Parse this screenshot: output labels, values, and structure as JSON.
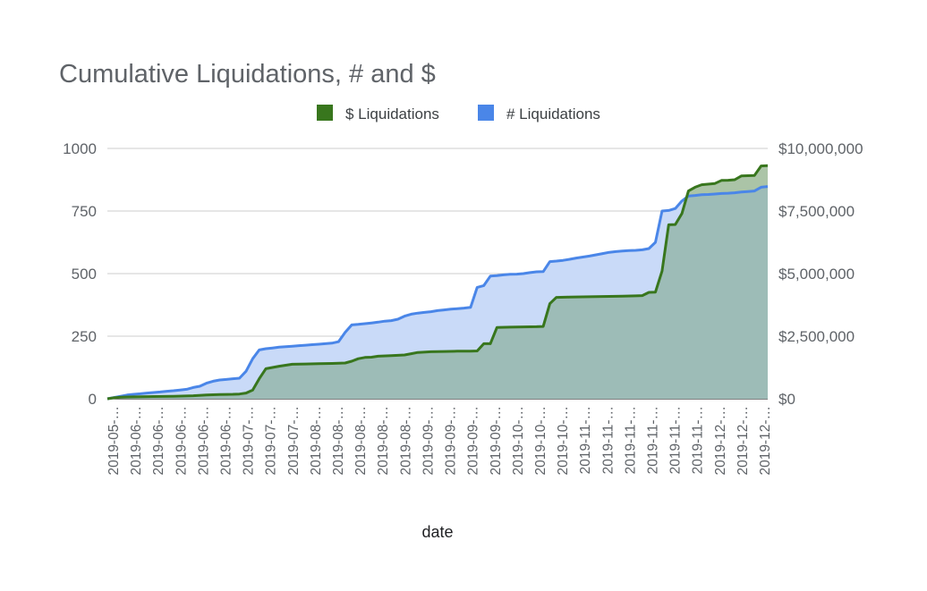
{
  "chart_data": {
    "type": "area",
    "title": "Cumulative Liquidations, # and $",
    "xlabel": "date",
    "ylabel_left": "",
    "ylabel_right": "",
    "legend_position": "top",
    "grid": true,
    "colors": {
      "dollar_line": "#38761d",
      "dollar_fill": "#8fb08a",
      "count_line": "#4a86e8",
      "count_fill": "#c9daf8",
      "overlap_fill": "#9dbcb7",
      "grid": "#cccccc",
      "axis_text": "#5f6368",
      "title": "#5f6368"
    },
    "y_left": {
      "lim": [
        0,
        1000
      ],
      "ticks": [
        0,
        250,
        500,
        750,
        1000
      ],
      "tick_labels": [
        "0",
        "250",
        "500",
        "750",
        "1000"
      ]
    },
    "y_right": {
      "lim": [
        0,
        10000000
      ],
      "ticks": [
        0,
        2500000,
        5000000,
        7500000,
        10000000
      ],
      "tick_labels": [
        "$0",
        "$2,500,000",
        "$5,000,000",
        "$7,500,000",
        "$10,000,000"
      ]
    },
    "x_tick_labels": [
      "2019-05-…",
      "2019-06-…",
      "2019-06-…",
      "2019-06-…",
      "2019-06-…",
      "2019-06-…",
      "2019-07-…",
      "2019-07-…",
      "2019-07-…",
      "2019-08-…",
      "2019-08-…",
      "2019-08-…",
      "2019-08-…",
      "2019-08-…",
      "2019-09-…",
      "2019-09-…",
      "2019-09-…",
      "2019-09-…",
      "2019-10-…",
      "2019-10-…",
      "2019-10-…",
      "2019-11-…",
      "2019-11-…",
      "2019-11-…",
      "2019-11-…",
      "2019-11-…",
      "2019-11-…",
      "2019-12-…",
      "2019-12-…",
      "2019-12-…"
    ],
    "series": [
      {
        "name": "$ Liquidations",
        "axis": "right",
        "points": [
          [
            0,
            0
          ],
          [
            2,
            40000
          ],
          [
            4,
            60000
          ],
          [
            6,
            70000
          ],
          [
            10,
            80000
          ],
          [
            14,
            90000
          ],
          [
            20,
            100000
          ],
          [
            26,
            120000
          ],
          [
            30,
            150000
          ],
          [
            34,
            170000
          ],
          [
            38,
            180000
          ],
          [
            40,
            190000
          ],
          [
            42,
            230000
          ],
          [
            44,
            350000
          ],
          [
            46,
            800000
          ],
          [
            48,
            1200000
          ],
          [
            52,
            1300000
          ],
          [
            56,
            1380000
          ],
          [
            60,
            1390000
          ],
          [
            64,
            1400000
          ],
          [
            68,
            1410000
          ],
          [
            70,
            1420000
          ],
          [
            72,
            1430000
          ],
          [
            74,
            1500000
          ],
          [
            76,
            1600000
          ],
          [
            78,
            1650000
          ],
          [
            80,
            1660000
          ],
          [
            82,
            1700000
          ],
          [
            86,
            1720000
          ],
          [
            90,
            1750000
          ],
          [
            92,
            1800000
          ],
          [
            94,
            1850000
          ],
          [
            98,
            1880000
          ],
          [
            102,
            1890000
          ],
          [
            106,
            1900000
          ],
          [
            110,
            1905000
          ],
          [
            112,
            1910000
          ],
          [
            114,
            2200000
          ],
          [
            116,
            2200000
          ],
          [
            118,
            2850000
          ],
          [
            122,
            2860000
          ],
          [
            126,
            2870000
          ],
          [
            130,
            2880000
          ],
          [
            132,
            2890000
          ],
          [
            134,
            3800000
          ],
          [
            136,
            4050000
          ],
          [
            140,
            4060000
          ],
          [
            144,
            4070000
          ],
          [
            148,
            4080000
          ],
          [
            152,
            4090000
          ],
          [
            156,
            4100000
          ],
          [
            160,
            4110000
          ],
          [
            162,
            4120000
          ],
          [
            164,
            4250000
          ],
          [
            166,
            4260000
          ],
          [
            168,
            5100000
          ],
          [
            170,
            6950000
          ],
          [
            172,
            6960000
          ],
          [
            174,
            7400000
          ],
          [
            176,
            8300000
          ],
          [
            178,
            8450000
          ],
          [
            180,
            8550000
          ],
          [
            184,
            8600000
          ],
          [
            186,
            8720000
          ],
          [
            188,
            8730000
          ],
          [
            190,
            8750000
          ],
          [
            192,
            8900000
          ],
          [
            196,
            8920000
          ],
          [
            198,
            9300000
          ],
          [
            200,
            9310000
          ]
        ]
      },
      {
        "name": "# Liquidations",
        "axis": "left",
        "points": [
          [
            0,
            0
          ],
          [
            2,
            5
          ],
          [
            4,
            10
          ],
          [
            6,
            15
          ],
          [
            8,
            18
          ],
          [
            10,
            20
          ],
          [
            12,
            23
          ],
          [
            14,
            25
          ],
          [
            16,
            27
          ],
          [
            18,
            30
          ],
          [
            20,
            32
          ],
          [
            22,
            35
          ],
          [
            24,
            38
          ],
          [
            26,
            45
          ],
          [
            28,
            50
          ],
          [
            30,
            62
          ],
          [
            32,
            70
          ],
          [
            34,
            75
          ],
          [
            36,
            77
          ],
          [
            38,
            80
          ],
          [
            40,
            82
          ],
          [
            42,
            110
          ],
          [
            44,
            160
          ],
          [
            46,
            195
          ],
          [
            48,
            200
          ],
          [
            50,
            203
          ],
          [
            52,
            206
          ],
          [
            54,
            208
          ],
          [
            56,
            210
          ],
          [
            58,
            212
          ],
          [
            60,
            214
          ],
          [
            62,
            216
          ],
          [
            64,
            218
          ],
          [
            66,
            220
          ],
          [
            68,
            222
          ],
          [
            70,
            228
          ],
          [
            72,
            265
          ],
          [
            74,
            295
          ],
          [
            76,
            297
          ],
          [
            78,
            300
          ],
          [
            80,
            303
          ],
          [
            82,
            306
          ],
          [
            84,
            310
          ],
          [
            86,
            312
          ],
          [
            88,
            318
          ],
          [
            90,
            330
          ],
          [
            92,
            338
          ],
          [
            94,
            342
          ],
          [
            96,
            345
          ],
          [
            98,
            348
          ],
          [
            100,
            352
          ],
          [
            102,
            355
          ],
          [
            104,
            358
          ],
          [
            106,
            360
          ],
          [
            108,
            362
          ],
          [
            110,
            365
          ],
          [
            112,
            445
          ],
          [
            114,
            452
          ],
          [
            116,
            490
          ],
          [
            118,
            492
          ],
          [
            120,
            495
          ],
          [
            122,
            497
          ],
          [
            124,
            498
          ],
          [
            126,
            500
          ],
          [
            128,
            504
          ],
          [
            130,
            507
          ],
          [
            132,
            508
          ],
          [
            134,
            548
          ],
          [
            136,
            550
          ],
          [
            138,
            553
          ],
          [
            140,
            557
          ],
          [
            142,
            562
          ],
          [
            144,
            566
          ],
          [
            146,
            570
          ],
          [
            148,
            575
          ],
          [
            150,
            580
          ],
          [
            152,
            585
          ],
          [
            154,
            588
          ],
          [
            156,
            590
          ],
          [
            158,
            592
          ],
          [
            160,
            593
          ],
          [
            162,
            595
          ],
          [
            164,
            600
          ],
          [
            166,
            625
          ],
          [
            168,
            750
          ],
          [
            170,
            752
          ],
          [
            172,
            760
          ],
          [
            174,
            790
          ],
          [
            176,
            810
          ],
          [
            178,
            812
          ],
          [
            180,
            815
          ],
          [
            182,
            816
          ],
          [
            184,
            818
          ],
          [
            186,
            820
          ],
          [
            188,
            821
          ],
          [
            190,
            823
          ],
          [
            192,
            826
          ],
          [
            194,
            828
          ],
          [
            196,
            830
          ],
          [
            198,
            845
          ],
          [
            200,
            848
          ]
        ]
      }
    ]
  }
}
